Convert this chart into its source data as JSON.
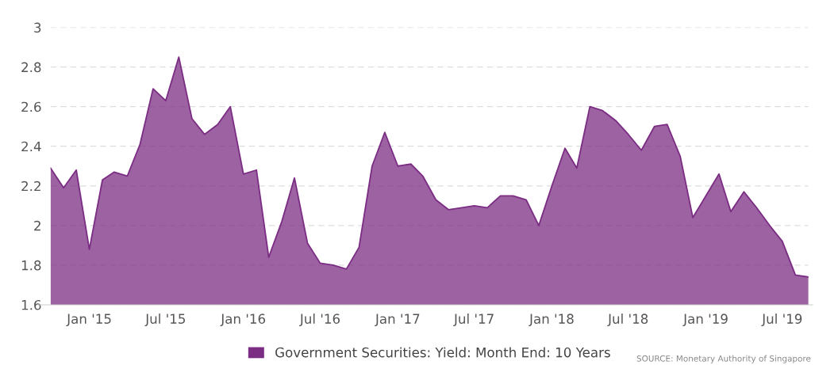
{
  "chart_data": {
    "type": "area",
    "x": [
      "2014-10",
      "2014-11",
      "2014-12",
      "2015-01",
      "2015-02",
      "2015-03",
      "2015-04",
      "2015-05",
      "2015-06",
      "2015-07",
      "2015-08",
      "2015-09",
      "2015-10",
      "2015-11",
      "2015-12",
      "2016-01",
      "2016-02",
      "2016-03",
      "2016-04",
      "2016-05",
      "2016-06",
      "2016-07",
      "2016-08",
      "2016-09",
      "2016-10",
      "2016-11",
      "2016-12",
      "2017-01",
      "2017-02",
      "2017-03",
      "2017-04",
      "2017-05",
      "2017-06",
      "2017-07",
      "2017-08",
      "2017-09",
      "2017-10",
      "2017-11",
      "2017-12",
      "2018-01",
      "2018-02",
      "2018-03",
      "2018-04",
      "2018-05",
      "2018-06",
      "2018-07",
      "2018-08",
      "2018-09",
      "2018-10",
      "2018-11",
      "2018-12",
      "2019-01",
      "2019-02",
      "2019-03",
      "2019-04",
      "2019-05",
      "2019-06",
      "2019-07",
      "2019-08",
      "2019-09"
    ],
    "series": [
      {
        "name": "Government Securities: Yield: Month End: 10 Years",
        "color": "#7b2d83",
        "values": [
          2.29,
          2.19,
          2.28,
          1.88,
          2.23,
          2.27,
          2.25,
          2.41,
          2.69,
          2.63,
          2.85,
          2.54,
          2.46,
          2.51,
          2.6,
          2.26,
          2.28,
          1.84,
          2.02,
          2.24,
          1.91,
          1.81,
          1.8,
          1.78,
          1.89,
          2.3,
          2.47,
          2.3,
          2.31,
          2.25,
          2.13,
          2.08,
          2.09,
          2.1,
          2.09,
          2.15,
          2.15,
          2.13,
          2.0,
          2.2,
          2.39,
          2.29,
          2.6,
          2.58,
          2.53,
          2.46,
          2.38,
          2.5,
          2.51,
          2.35,
          2.04,
          2.15,
          2.26,
          2.07,
          2.17,
          2.09,
          2.0,
          1.92,
          1.75,
          1.74
        ]
      }
    ],
    "xlim": [
      "2014-10",
      "2019-09"
    ],
    "xticks": [
      {
        "value": "2015-01",
        "label": "Jan '15"
      },
      {
        "value": "2015-07",
        "label": "Jul '15"
      },
      {
        "value": "2016-01",
        "label": "Jan '16"
      },
      {
        "value": "2016-07",
        "label": "Jul '16"
      },
      {
        "value": "2017-01",
        "label": "Jan '17"
      },
      {
        "value": "2017-07",
        "label": "Jul '17"
      },
      {
        "value": "2018-01",
        "label": "Jan '18"
      },
      {
        "value": "2018-07",
        "label": "Jul '18"
      },
      {
        "value": "2019-01",
        "label": "Jan '19"
      },
      {
        "value": "2019-07",
        "label": "Jul '19"
      }
    ],
    "ylim": [
      1.6,
      3
    ],
    "yticks": [
      1.6,
      1.8,
      2,
      2.2,
      2.4,
      2.6,
      2.8,
      3
    ],
    "grid": "y",
    "legend": "bottom",
    "annotations": [
      "SOURCE: Monetary Authority of Singapore"
    ]
  }
}
